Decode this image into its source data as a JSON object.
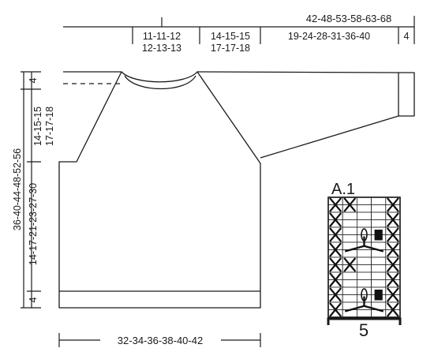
{
  "top_measures": {
    "overall": "42-48-53-58-63-68",
    "neck_half": [
      "11-11-12",
      "12-13-13"
    ],
    "shoulder": [
      "14-15-15",
      "17-17-18"
    ],
    "sleeve": "19-24-28-31-36-40",
    "cuff": "4"
  },
  "left_measures": {
    "neck_rib": "4",
    "raglan": [
      "14-15-15",
      "17-17-18"
    ],
    "total_length": "36-40-44-48-52-56",
    "body_length": "14-17-21-23-27-30",
    "hem_rib": "4"
  },
  "bottom_measure": "32-34-36-38-40-42",
  "chart": {
    "title": "A.1",
    "width_label": "5",
    "rows": [
      "XX..X",
      ".....",
      "X...X",
      ".....",
      "X.oSX",
      ".....",
      "XbjdX",
      ".....",
      "XX..X",
      ".....",
      "X...X",
      ".....",
      "X.oSX",
      ".....",
      "XbjdX",
      "....."
    ]
  }
}
